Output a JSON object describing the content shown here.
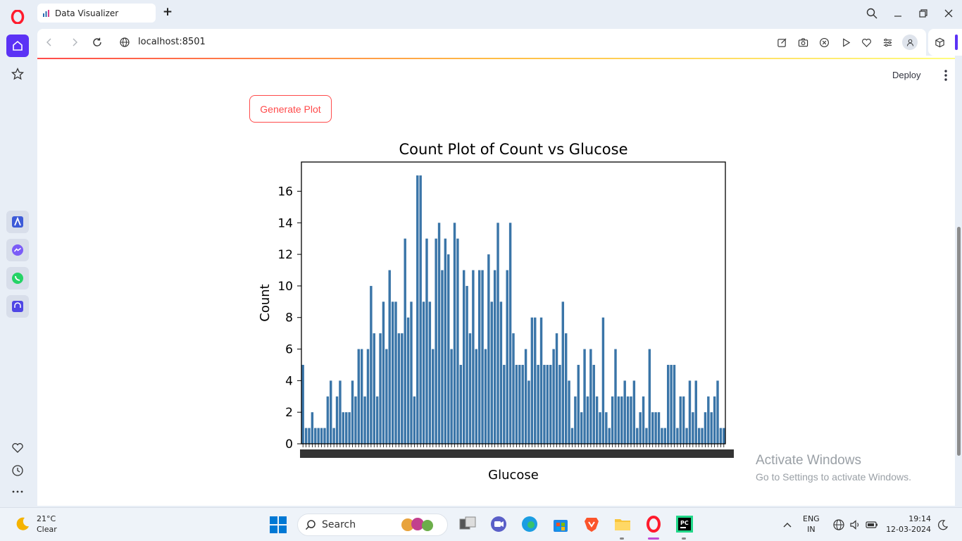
{
  "browser": {
    "tab_title": "Data Visualizer",
    "url": "localhost:8501"
  },
  "app": {
    "deploy_label": "Deploy",
    "generate_button": "Generate Plot"
  },
  "chart_data": {
    "type": "bar",
    "title": "Count Plot of Count vs Glucose",
    "xlabel": "Glucose",
    "ylabel": "Count",
    "ylim": [
      0,
      17.85
    ],
    "yticks": [
      0,
      2,
      4,
      6,
      8,
      10,
      12,
      14,
      16
    ],
    "bar_color": "#3a75a8",
    "values": [
      5,
      1,
      1,
      2,
      1,
      1,
      1,
      1,
      3,
      4,
      1,
      3,
      4,
      2,
      2,
      2,
      4,
      3,
      6,
      6,
      3,
      6,
      10,
      7,
      3,
      7,
      9,
      6,
      11,
      9,
      9,
      7,
      7,
      13,
      8,
      9,
      3,
      17,
      17,
      9,
      13,
      9,
      6,
      13,
      14,
      11,
      13,
      12,
      6,
      14,
      13,
      5,
      11,
      10,
      7,
      11,
      6,
      11,
      11,
      6,
      12,
      9,
      11,
      14,
      9,
      5,
      11,
      14,
      7,
      5,
      5,
      5,
      6,
      4,
      8,
      8,
      5,
      8,
      5,
      5,
      5,
      6,
      7,
      5,
      9,
      7,
      4,
      1,
      3,
      5,
      2,
      6,
      3,
      6,
      5,
      3,
      2,
      8,
      2,
      1,
      3,
      6,
      3,
      3,
      4,
      3,
      3,
      4,
      1,
      2,
      3,
      1,
      6,
      2,
      2,
      2,
      1,
      1,
      5,
      5,
      5,
      1,
      3,
      3,
      1,
      4,
      2,
      4,
      1,
      1,
      2,
      3,
      2,
      3,
      4,
      1,
      1
    ]
  },
  "watermark": {
    "line1": "Activate Windows",
    "line2": "Go to Settings to activate Windows."
  },
  "taskbar": {
    "temp": "21°C",
    "condition": "Clear",
    "search_placeholder": "Search",
    "lang1": "ENG",
    "lang2": "IN",
    "time": "19:14",
    "date": "12-03-2024"
  }
}
